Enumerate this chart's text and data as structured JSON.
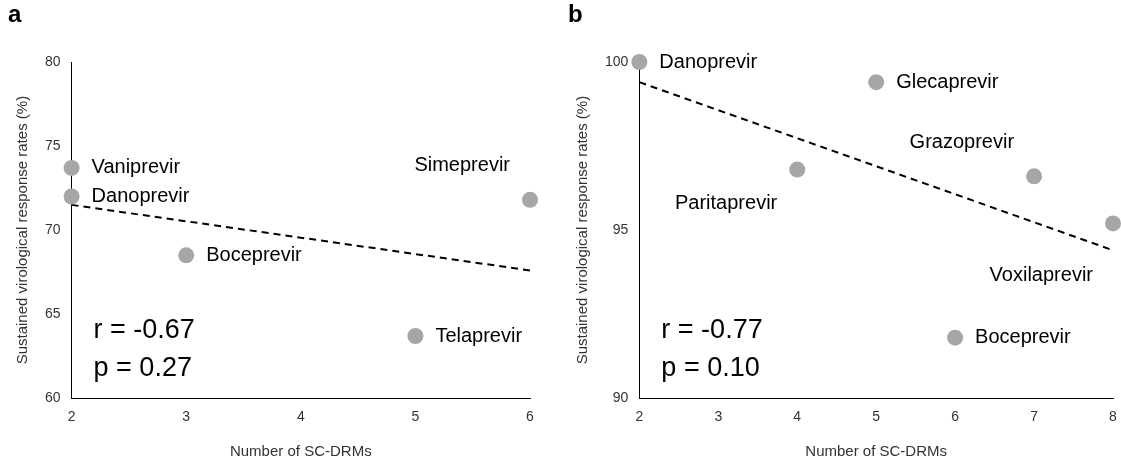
{
  "chart_data": [
    {
      "type": "scatter",
      "title": "a",
      "xlabel": "Number of SC-DRMs",
      "ylabel": "Sustained virological response rates (%)",
      "xlim": [
        2,
        6
      ],
      "xticks": [
        2,
        3,
        4,
        5,
        6
      ],
      "ylim": [
        60,
        80
      ],
      "yticks": [
        60,
        65,
        70,
        75,
        80
      ],
      "grid": false,
      "legend": false,
      "series": [
        {
          "type": "scatter",
          "color": "#a6a6a6",
          "marker": "circle",
          "x": [
            2,
            2,
            3,
            5,
            6
          ],
          "values": [
            73.7,
            72.0,
            68.5,
            63.7,
            71.8
          ]
        },
        {
          "type": "line",
          "color": "#000000",
          "marker": "none",
          "line_style": "dashed",
          "x": [
            2,
            6
          ],
          "values": [
            71.5,
            67.6
          ]
        }
      ],
      "annotations": [
        {
          "text": "Vaniprevir",
          "x": 2,
          "y": 73.7
        },
        {
          "text": "Danoprevir",
          "x": 2,
          "y": 72.0
        },
        {
          "text": "Boceprevir",
          "x": 3,
          "y": 68.5
        },
        {
          "text": "Telaprevir",
          "x": 5,
          "y": 63.7
        },
        {
          "text": "Simeprevir",
          "x": 6,
          "y": 71.8
        },
        "r = -0.67",
        "p = 0.27"
      ]
    },
    {
      "type": "scatter",
      "title": "b",
      "xlabel": "Number of SC-DRMs",
      "ylabel": "Sustained virological response rates (%)",
      "xlim": [
        2,
        8
      ],
      "xticks": [
        2,
        3,
        4,
        5,
        6,
        7,
        8
      ],
      "ylim": [
        90,
        100
      ],
      "yticks": [
        90,
        95,
        100
      ],
      "grid": false,
      "legend": false,
      "series": [
        {
          "type": "scatter",
          "color": "#a6a6a6",
          "marker": "circle",
          "x": [
            2,
            5,
            4,
            7,
            8,
            6
          ],
          "values": [
            100,
            99.4,
            96.8,
            96.6,
            95.2,
            91.8
          ]
        },
        {
          "type": "line",
          "color": "#000000",
          "marker": "none",
          "line_style": "dashed",
          "x": [
            2,
            8
          ],
          "values": [
            99.4,
            94.4
          ]
        }
      ],
      "annotations": [
        {
          "text": "Danoprevir",
          "x": 2,
          "y": 100
        },
        {
          "text": "Glecaprevir",
          "x": 5,
          "y": 99.4
        },
        {
          "text": "Grazoprevir",
          "x": 7,
          "y": 96.6
        },
        {
          "text": "Paritaprevir",
          "x": 4,
          "y": 96.8
        },
        {
          "text": "Voxilaprevir",
          "x": 8,
          "y": 95.2
        },
        {
          "text": "Boceprevir",
          "x": 6,
          "y": 91.8
        },
        "r = -0.77",
        "p = 0.10"
      ]
    }
  ]
}
